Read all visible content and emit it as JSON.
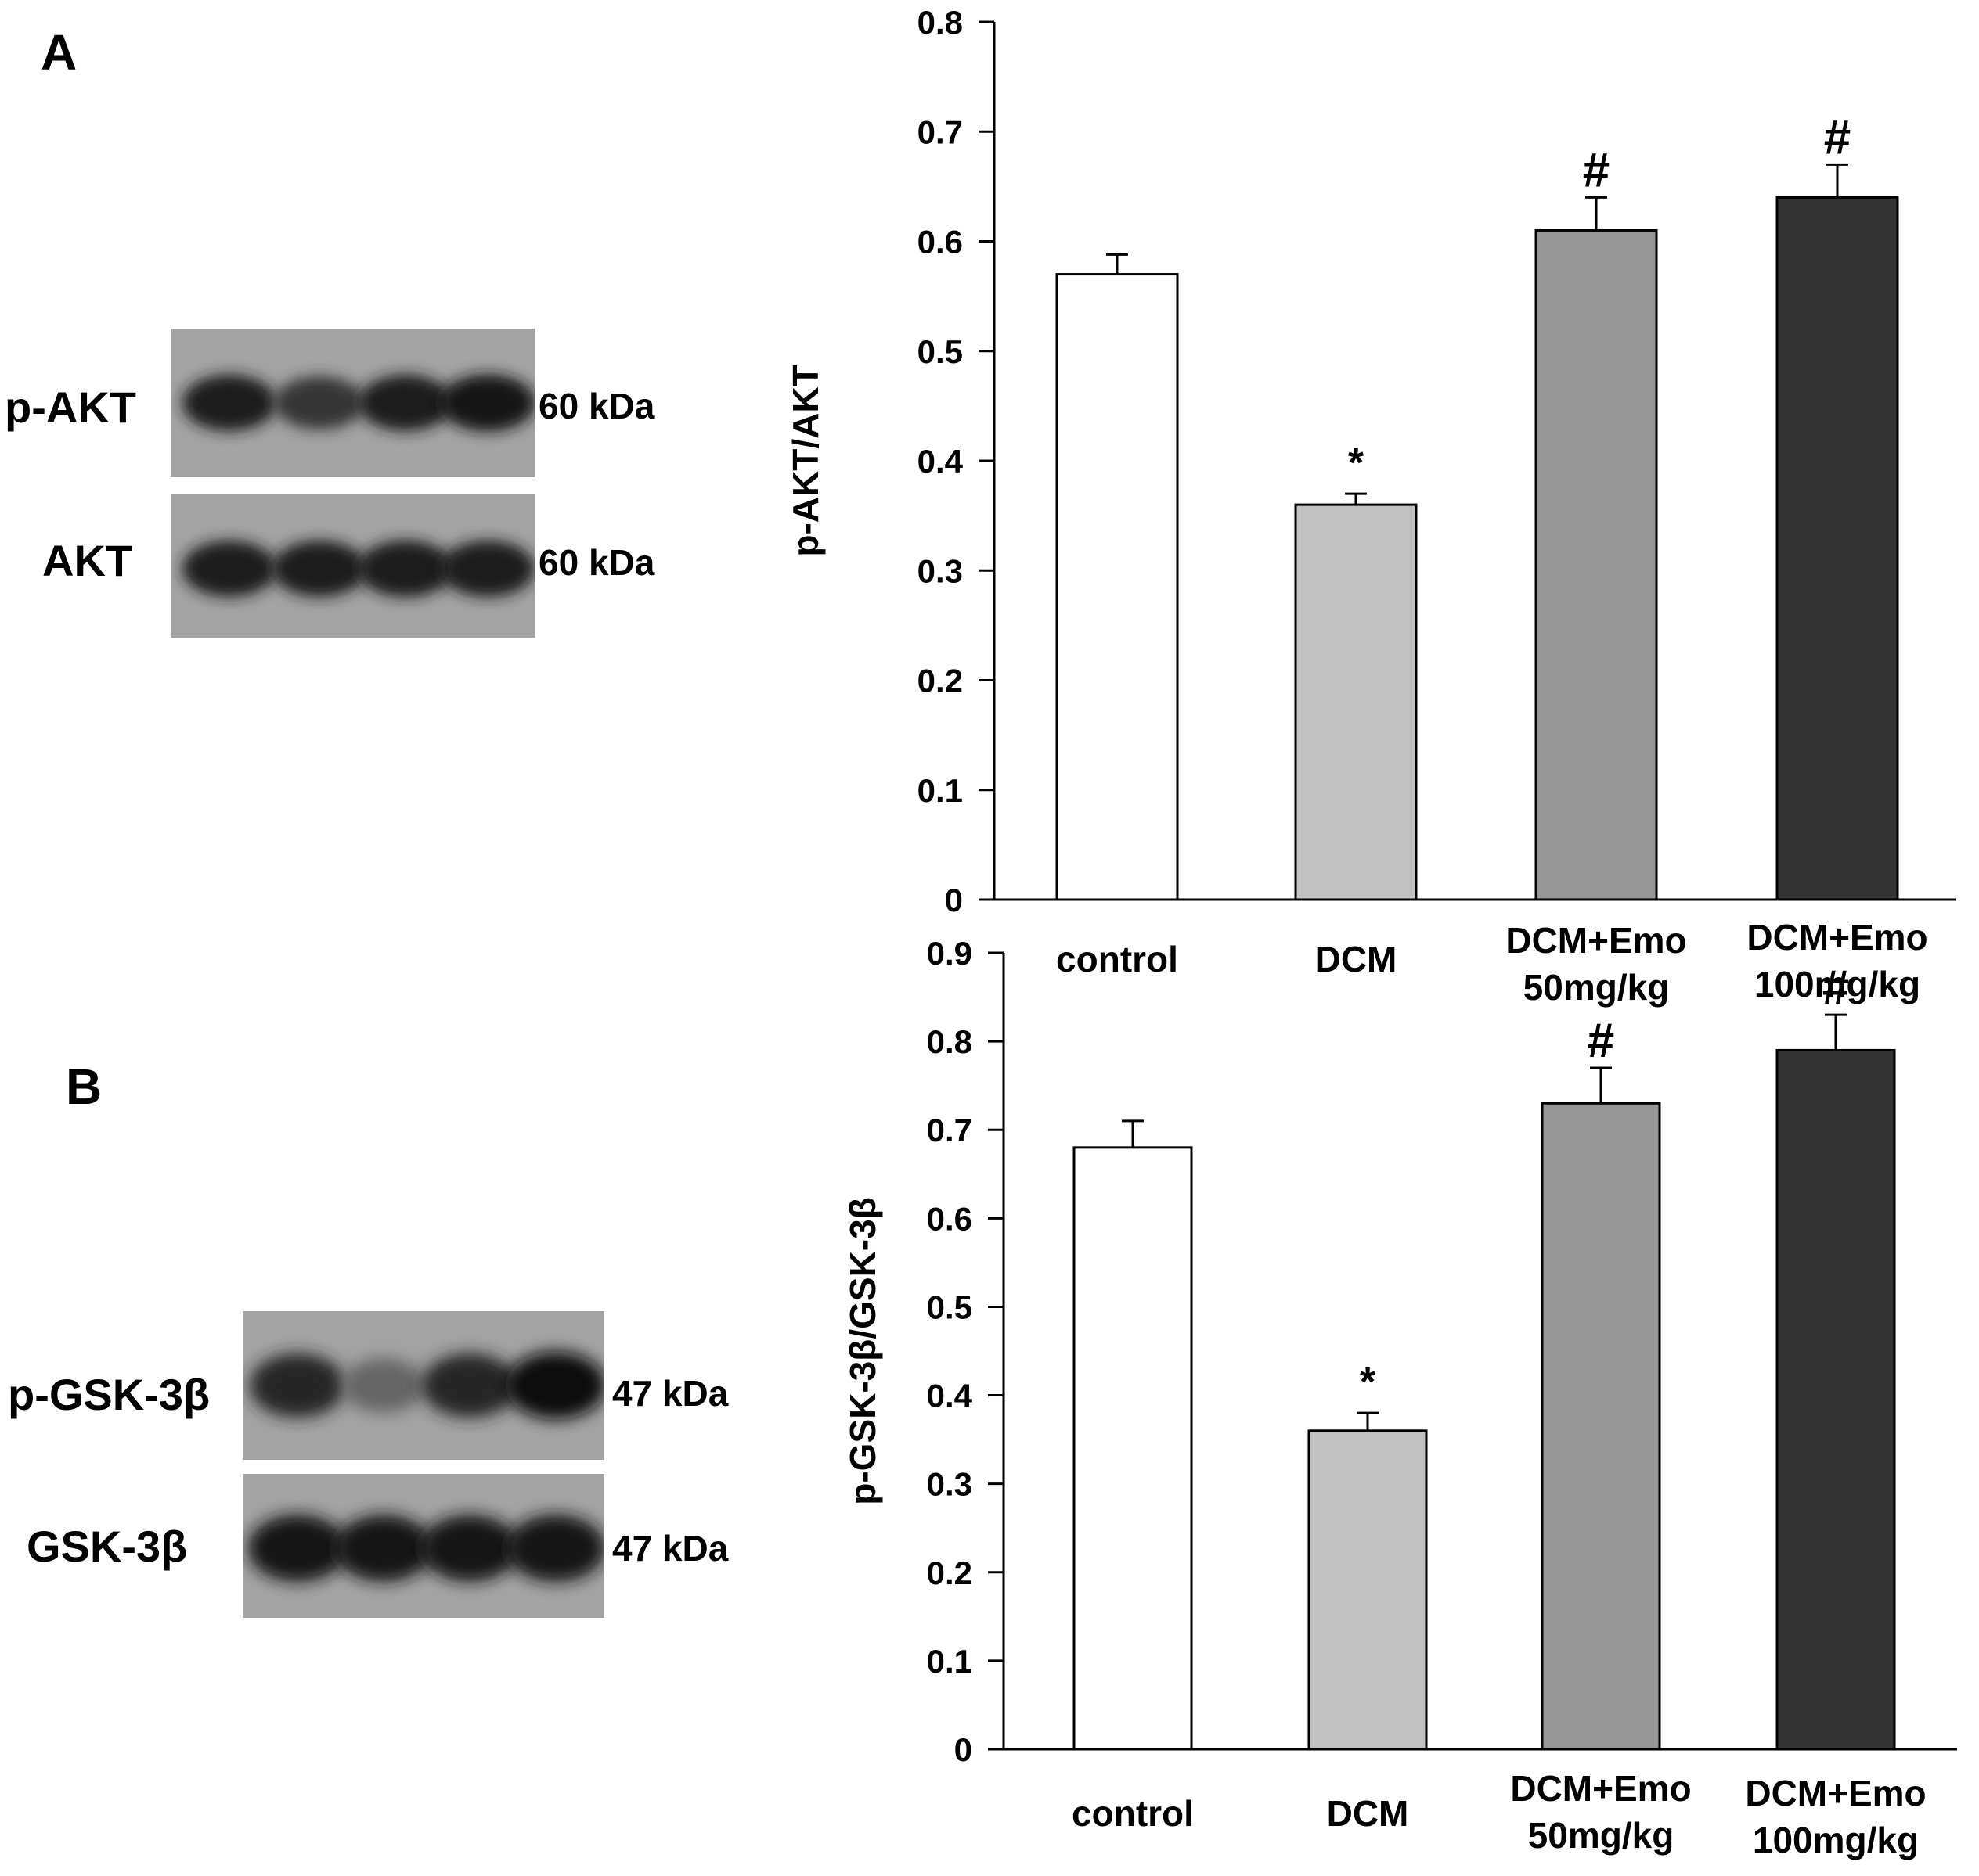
{
  "panels": [
    {
      "letter": "A",
      "blot": {
        "rows": [
          {
            "label": "p-AKT",
            "kda": "60 kDa",
            "intensities": [
              0.85,
              0.7,
              0.85,
              0.9
            ]
          },
          {
            "label": "AKT",
            "kda": "60 kDa",
            "intensities": [
              0.85,
              0.85,
              0.88,
              0.86
            ]
          }
        ]
      }
    },
    {
      "letter": "B",
      "blot": {
        "rows": [
          {
            "label": "p-GSK-3β",
            "kda": "47 kDa",
            "intensities": [
              0.8,
              0.35,
              0.8,
              0.95
            ]
          },
          {
            "label": "GSK-3β",
            "kda": "47 kDa",
            "intensities": [
              0.92,
              0.9,
              0.9,
              0.92
            ]
          }
        ]
      }
    }
  ],
  "chart_data": [
    {
      "type": "bar",
      "ylabel": "p-AKT/AKT",
      "xlabel": "",
      "ylim": [
        0,
        0.8
      ],
      "yticks": [
        "0",
        "0.1",
        "0.2",
        "0.3",
        "0.4",
        "0.5",
        "0.6",
        "0.7",
        "0.8"
      ],
      "categories": [
        [
          "control"
        ],
        [
          "DCM"
        ],
        [
          "DCM+Emo",
          "50mg/kg"
        ],
        [
          "DCM+Emo",
          "100mg/kg"
        ]
      ],
      "values": [
        0.57,
        0.36,
        0.61,
        0.64
      ],
      "errors": [
        0.018,
        0.01,
        0.03,
        0.03
      ],
      "annotations": [
        "",
        "*",
        "#",
        "#"
      ],
      "colors": [
        "#ffffff",
        "#c0c0c0",
        "#969696",
        "#333333"
      ]
    },
    {
      "type": "bar",
      "ylabel": "p-GSK-3β/GSK-3β",
      "xlabel": "",
      "ylim": [
        0,
        0.9
      ],
      "yticks": [
        "0",
        "0.1",
        "0.2",
        "0.3",
        "0.4",
        "0.5",
        "0.6",
        "0.7",
        "0.8",
        "0.9"
      ],
      "categories": [
        [
          "control"
        ],
        [
          "DCM"
        ],
        [
          "DCM+Emo",
          "50mg/kg"
        ],
        [
          "DCM+Emo",
          "100mg/kg"
        ]
      ],
      "values": [
        0.68,
        0.36,
        0.73,
        0.79
      ],
      "errors": [
        0.03,
        0.02,
        0.04,
        0.04
      ],
      "annotations": [
        "",
        "*",
        "#",
        "#"
      ],
      "colors": [
        "#ffffff",
        "#c0c0c0",
        "#969696",
        "#333333"
      ]
    }
  ]
}
